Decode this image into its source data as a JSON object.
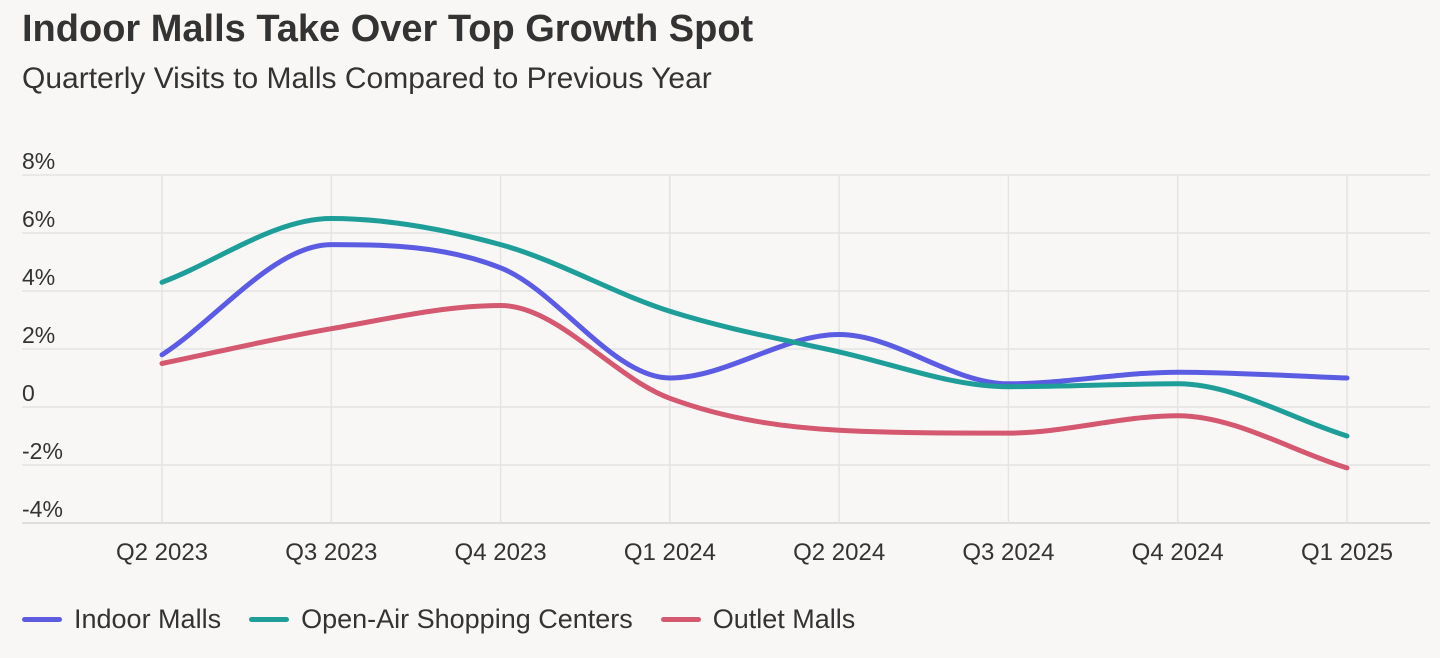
{
  "chart_data": {
    "type": "line",
    "title": "Indoor Malls Take Over Top Growth Spot",
    "subtitle": "Quarterly Visits to Malls Compared to Previous Year",
    "xlabel": "",
    "ylabel": "",
    "categories": [
      "Q2 2023",
      "Q3 2023",
      "Q4 2023",
      "Q1 2024",
      "Q2 2024",
      "Q3 2024",
      "Q4 2024",
      "Q1 2025"
    ],
    "ylim": [
      -4,
      8
    ],
    "yticks": [
      -4,
      -2,
      0,
      2,
      4,
      6,
      8
    ],
    "ytick_labels": [
      "-4%",
      "-2%",
      "0",
      "2%",
      "4%",
      "6%",
      "8%"
    ],
    "grid": true,
    "legend_position": "bottom-left",
    "series": [
      {
        "name": "Indoor Malls",
        "color": "#5b5ce2",
        "values": [
          1.8,
          5.6,
          4.8,
          1.0,
          2.5,
          0.8,
          1.2,
          1.0
        ]
      },
      {
        "name": "Open-Air Shopping Centers",
        "color": "#1f9e99",
        "values": [
          4.3,
          6.5,
          5.6,
          3.3,
          1.9,
          0.7,
          0.8,
          -1.0
        ]
      },
      {
        "name": "Outlet Malls",
        "color": "#d35870",
        "values": [
          1.5,
          2.7,
          3.5,
          0.3,
          -0.8,
          -0.9,
          -0.3,
          -2.1
        ]
      }
    ]
  }
}
